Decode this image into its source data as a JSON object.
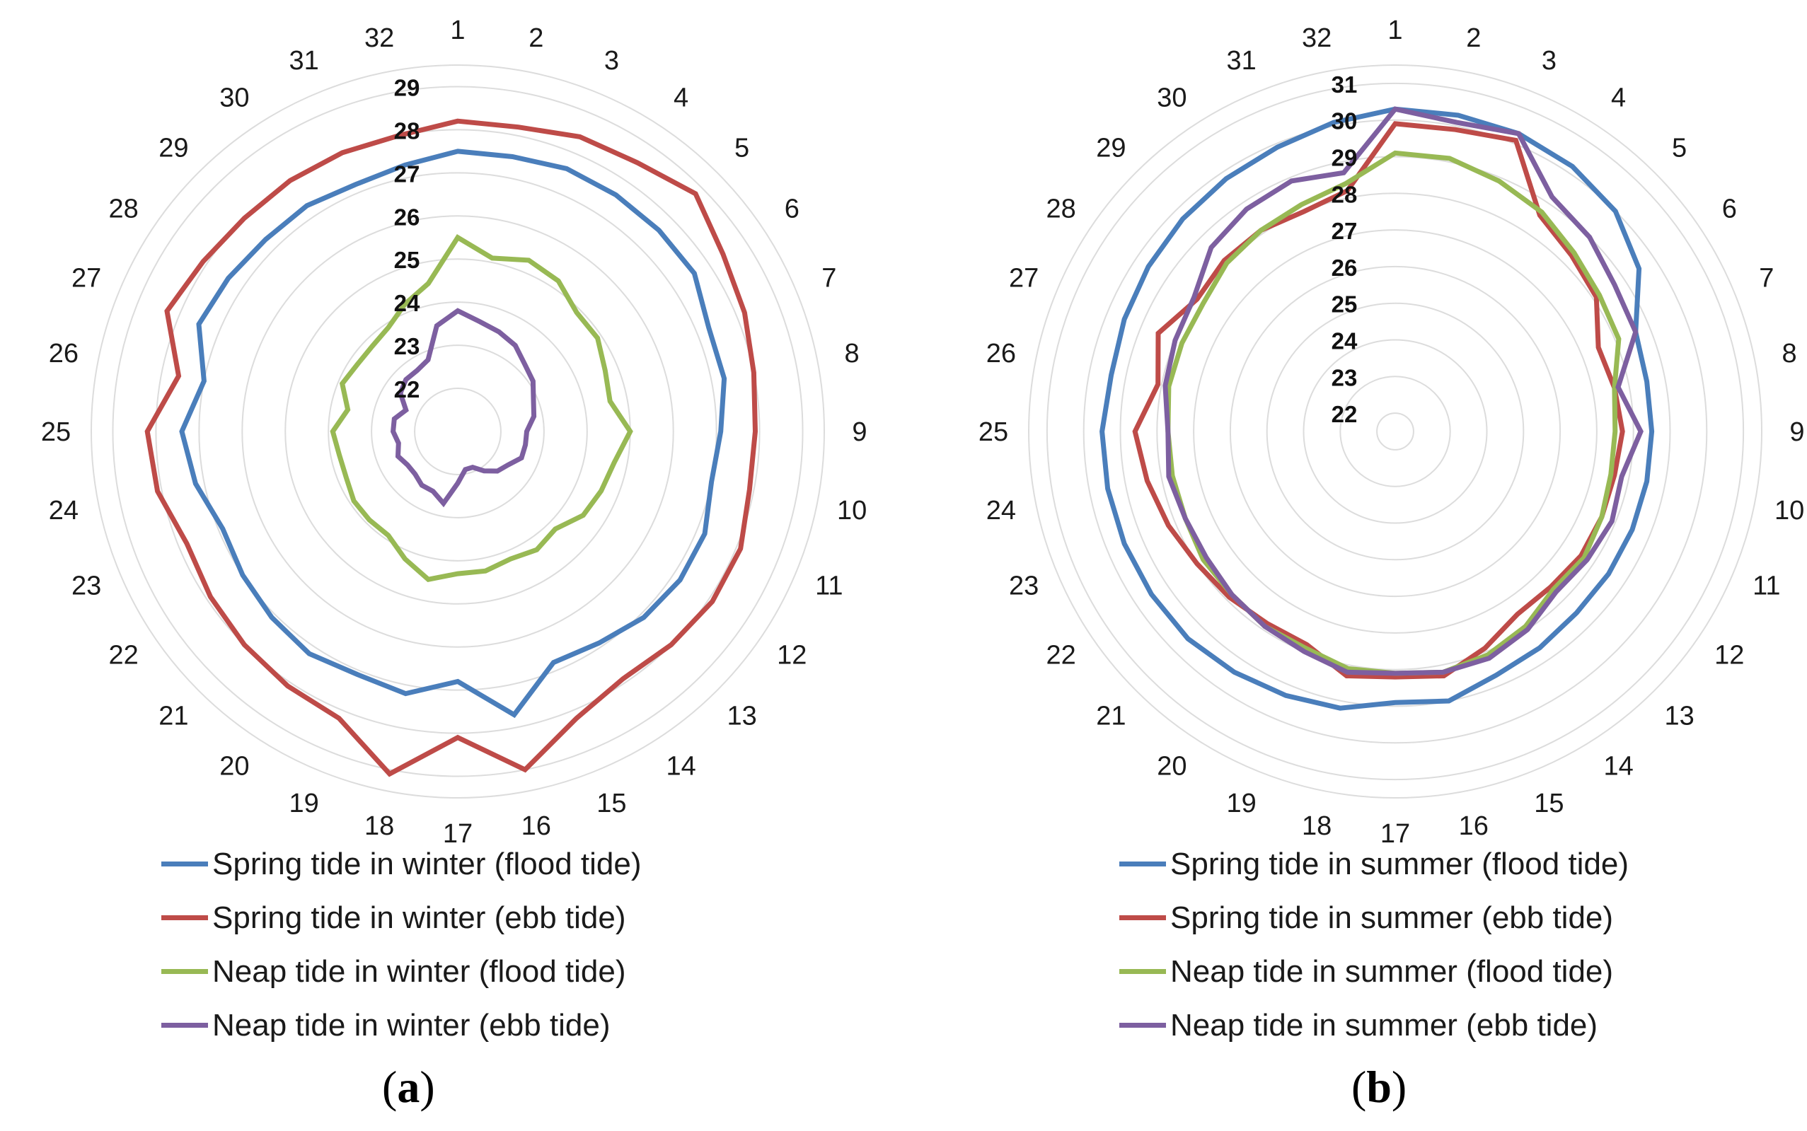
{
  "chart_data": [
    {
      "type": "radar",
      "caption": "a",
      "categories": [
        "1",
        "2",
        "3",
        "4",
        "5",
        "6",
        "7",
        "8",
        "9",
        "10",
        "11",
        "12",
        "13",
        "14",
        "15",
        "16",
        "17",
        "18",
        "19",
        "20",
        "21",
        "22",
        "23",
        "24",
        "25",
        "26",
        "27",
        "28",
        "29",
        "30",
        "31",
        "32"
      ],
      "rlim": [
        21,
        29.5
      ],
      "ticks": [
        "22",
        "23",
        "24",
        "25",
        "26",
        "27",
        "28",
        "29"
      ],
      "series": [
        {
          "name": "Spring tide in winter (flood tide)",
          "color": "#4a7ebb",
          "values": [
            27.5,
            27.5,
            27.6,
            27.6,
            27.6,
            27.6,
            27.3,
            27.3,
            27.1,
            27.0,
            27.2,
            27.2,
            27.1,
            26.9,
            26.8,
            27.7,
            26.8,
            27.2,
            27.1,
            27.2,
            27.1,
            27.0,
            26.9,
            27.2,
            27.4,
            27.0,
            27.5,
            27.4,
            27.3,
            27.3,
            27.2,
            27.3
          ]
        },
        {
          "name": "Spring tide in winter (ebb tide)",
          "color": "#be4b48",
          "values": [
            28.2,
            28.2,
            28.4,
            28.5,
            28.8,
            28.4,
            28.2,
            28.0,
            27.9,
            27.9,
            28.1,
            28.1,
            28.0,
            27.9,
            28.2,
            29.0,
            28.1,
            29.1,
            28.2,
            28.1,
            28.0,
            27.9,
            27.8,
            28.1,
            28.2,
            27.6,
            28.3,
            28.1,
            28.0,
            28.0,
            28.0,
            28.0
          ]
        },
        {
          "name": "Neap tide in winter (flood tide)",
          "color": "#98b954",
          "values": [
            25.5,
            25.1,
            25.3,
            25.2,
            24.9,
            24.9,
            24.7,
            24.6,
            25.0,
            24.7,
            24.6,
            24.5,
            24.2,
            24.3,
            24.2,
            24.3,
            24.3,
            24.5,
            24.2,
            23.9,
            23.9,
            23.9,
            23.8,
            23.8,
            23.9,
            23.6,
            23.9,
            23.8,
            23.8,
            23.9,
            24.2,
            24.5
          ]
        },
        {
          "name": "Neap tide in winter (ebb tide)",
          "color": "#7d5fa0",
          "values": [
            23.8,
            23.6,
            23.5,
            23.4,
            23.2,
            23.1,
            22.9,
            22.8,
            22.6,
            22.6,
            22.6,
            22.4,
            22.3,
            22.1,
            21.9,
            21.9,
            22.2,
            22.7,
            22.5,
            22.5,
            22.4,
            22.4,
            22.5,
            22.4,
            22.5,
            22.5,
            22.3,
            22.6,
            22.7,
            22.7,
            22.8,
            23.5
          ]
        }
      ]
    },
    {
      "type": "radar",
      "caption": "b",
      "categories": [
        "1",
        "2",
        "3",
        "4",
        "5",
        "6",
        "7",
        "8",
        "9",
        "10",
        "11",
        "12",
        "13",
        "14",
        "15",
        "16",
        "17",
        "18",
        "19",
        "20",
        "21",
        "22",
        "23",
        "24",
        "25",
        "26",
        "27",
        "28",
        "29",
        "30",
        "31",
        "32"
      ],
      "rlim": [
        21.5,
        31.5
      ],
      "ticks": [
        "22",
        "23",
        "24",
        "25",
        "26",
        "27",
        "28",
        "29",
        "30",
        "31"
      ],
      "series": [
        {
          "name": "Spring tide in summer (flood tide)",
          "color": "#4a7ebb",
          "values": [
            30.3,
            30.3,
            30.3,
            30.2,
            30.0,
            29.5,
            28.6,
            28.5,
            28.5,
            28.5,
            28.5,
            28.5,
            28.5,
            28.6,
            28.7,
            29.0,
            28.9,
            29.2,
            29.3,
            29.4,
            29.5,
            29.5,
            29.5,
            29.5,
            29.5,
            29.4,
            29.5,
            29.6,
            29.7,
            29.8,
            29.9,
            30.1
          ]
        },
        {
          "name": "Spring tide in summer (ebb tide)",
          "color": "#be4b48",
          "values": [
            29.9,
            29.9,
            30.1,
            28.6,
            28.3,
            28.1,
            27.5,
            27.6,
            27.7,
            27.6,
            27.6,
            27.6,
            27.5,
            27.5,
            27.9,
            28.3,
            28.2,
            28.3,
            27.8,
            27.8,
            27.9,
            28.0,
            28.2,
            28.4,
            28.6,
            28.1,
            28.5,
            28.0,
            28.1,
            28.1,
            28.0,
            28.2
          ]
        },
        {
          "name": "Neap tide in summer (flood tide)",
          "color": "#98b954",
          "values": [
            29.1,
            29.1,
            28.9,
            28.7,
            28.4,
            28.2,
            28.1,
            27.6,
            27.5,
            27.5,
            27.6,
            27.7,
            27.6,
            27.9,
            28.1,
            28.2,
            28.1,
            28.1,
            27.9,
            27.9,
            27.8,
            27.8,
            27.7,
            27.7,
            27.7,
            27.8,
            27.8,
            27.8,
            28.0,
            28.1,
            28.2,
            28.4
          ]
        },
        {
          "name": "Neap tide in summer (ebb tide)",
          "color": "#7d5fa0",
          "values": [
            30.3,
            30.1,
            30.3,
            29.2,
            29.0,
            28.7,
            28.6,
            27.7,
            28.2,
            27.8,
            27.9,
            27.8,
            27.7,
            28.0,
            28.2,
            28.2,
            28.1,
            28.2,
            28.0,
            27.9,
            27.8,
            27.7,
            27.7,
            27.8,
            27.7,
            27.9,
            28.0,
            28.1,
            28.6,
            28.8,
            28.9,
            28.7
          ]
        }
      ]
    }
  ],
  "figure": {
    "caption_a": "a",
    "caption_b": "b"
  }
}
